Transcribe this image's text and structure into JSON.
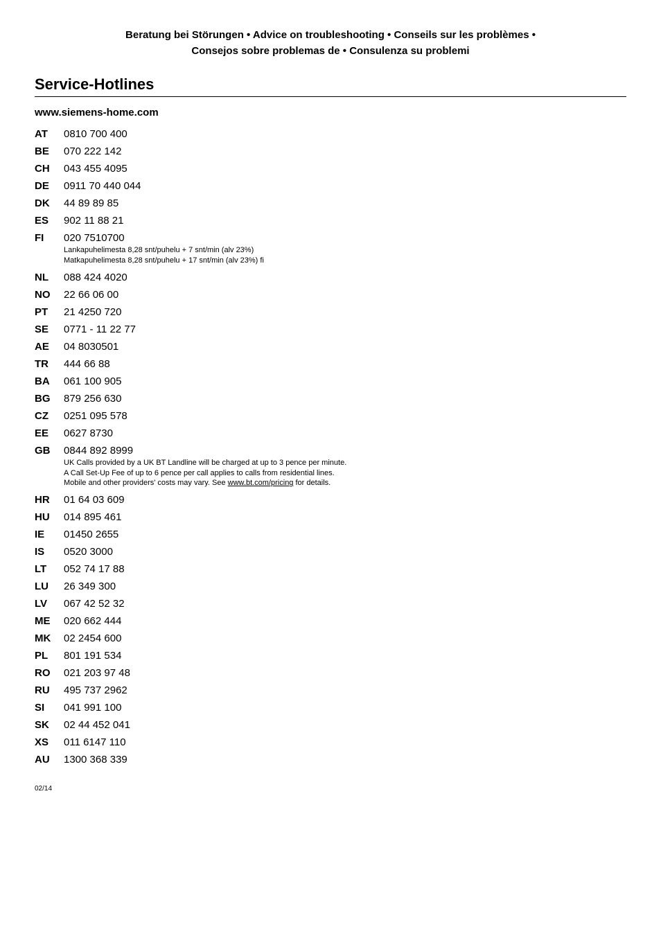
{
  "header": {
    "line1": "Beratung bei Störungen  •  Advice on troubleshooting  •  Conseils sur les problèmes  •",
    "line2": "Consejos sobre problemas de  •  Consulenza su problemi"
  },
  "title": "Service-Hotlines",
  "subhead": "www.siemens-home.com",
  "entries": [
    {
      "code": "AT",
      "num": "0810 700 400"
    },
    {
      "code": "BE",
      "num": "070 222 142"
    },
    {
      "code": "CH",
      "num": "043 455 4095"
    },
    {
      "code": "DE",
      "num": "0911 70 440 044"
    },
    {
      "code": "DK",
      "num": "44 89 89 85"
    },
    {
      "code": "ES",
      "num": "902 11 88 21"
    },
    {
      "code": "FI",
      "num": "020 7510700",
      "note_lines": [
        "Lankapuhelimesta 8,28 snt/puhelu + 7 snt/min (alv 23%)",
        "Matkapuhelimesta 8,28 snt/puhelu + 17 snt/min (alv 23%) fi"
      ]
    },
    {
      "code": "NL",
      "num": "088 424 4020"
    },
    {
      "code": "NO",
      "num": "22 66 06 00"
    },
    {
      "code": "PT",
      "num": "21 4250 720"
    },
    {
      "code": "SE",
      "num": "0771 - 11 22 77"
    },
    {
      "code": "AE",
      "num": "04 8030501"
    },
    {
      "code": "TR",
      "num": "444 66 88"
    },
    {
      "code": "BA",
      "num": "061 100 905"
    },
    {
      "code": "BG",
      "num": "879 256 630"
    },
    {
      "code": "CZ",
      "num": "0251 095 578"
    },
    {
      "code": "EE",
      "num": "0627 8730"
    },
    {
      "code": "GB",
      "num": "0844 892 8999",
      "note_lines": [
        "UK Calls provided by a UK BT Landline will be charged at up to 3 pence per minute.",
        "A Call Set-Up Fee of up to 6 pence per call applies to calls from residential lines.",
        "Mobile and other providers' costs may vary. See <a>www.bt.com/pricing</a> for details."
      ]
    },
    {
      "code": "HR",
      "num": "01 64 03 609"
    },
    {
      "code": "HU",
      "num": "014 895 461"
    },
    {
      "code": "IE",
      "num": "01450 2655"
    },
    {
      "code": "IS",
      "num": "0520 3000"
    },
    {
      "code": "LT",
      "num": "052 74 17 88"
    },
    {
      "code": "LU",
      "num": "26 349 300"
    },
    {
      "code": "LV",
      "num": "067 42 52 32"
    },
    {
      "code": "ME",
      "num": "020 662 444"
    },
    {
      "code": "MK",
      "num": "02 2454 600"
    },
    {
      "code": "PL",
      "num": "801 191 534"
    },
    {
      "code": "RO",
      "num": "021 203 97 48"
    },
    {
      "code": "RU",
      "num": "495 737 2962"
    },
    {
      "code": "SI",
      "num": "041 991 100"
    },
    {
      "code": "SK",
      "num": "02 44 452 041"
    },
    {
      "code": "XS",
      "num": "011 6147 110"
    },
    {
      "code": "AU",
      "num": "1300 368 339"
    }
  ],
  "footer": "02/14"
}
